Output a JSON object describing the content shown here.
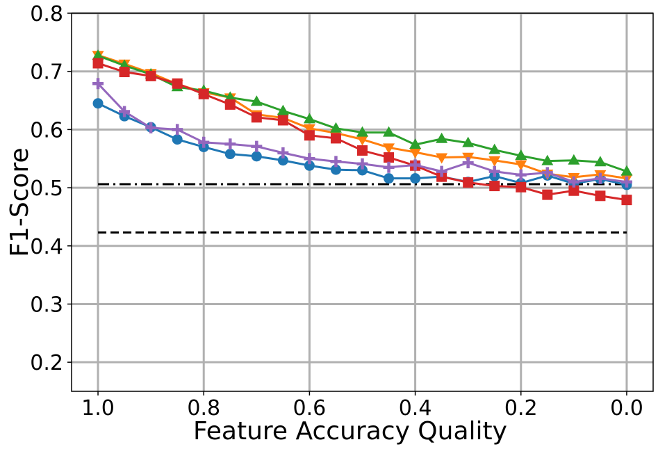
{
  "chart_data": {
    "type": "line",
    "xlabel": "Feature Accuracy Quality",
    "ylabel": "F1-Score",
    "x": [
      1.0,
      0.95,
      0.9,
      0.85,
      0.8,
      0.75,
      0.7,
      0.65,
      0.6,
      0.55,
      0.5,
      0.45,
      0.4,
      0.35,
      0.3,
      0.25,
      0.2,
      0.15,
      0.1,
      0.05,
      0.0
    ],
    "series": [
      {
        "color": "#1f77b4",
        "marker": "circle",
        "values": [
          0.645,
          0.623,
          0.604,
          0.583,
          0.57,
          0.558,
          0.554,
          0.547,
          0.538,
          0.531,
          0.53,
          0.516,
          0.516,
          0.519,
          0.51,
          0.52,
          0.508,
          0.521,
          0.507,
          0.515,
          0.505
        ]
      },
      {
        "color": "#ff7f0e",
        "marker": "triangle-down",
        "values": [
          0.728,
          0.713,
          0.697,
          0.678,
          0.664,
          0.655,
          0.626,
          0.62,
          0.602,
          0.594,
          0.583,
          0.569,
          0.561,
          0.552,
          0.553,
          0.547,
          0.54,
          0.524,
          0.518,
          0.523,
          0.516
        ]
      },
      {
        "color": "#2ca02c",
        "marker": "triangle-up",
        "values": [
          0.727,
          0.71,
          0.695,
          0.673,
          0.667,
          0.655,
          0.648,
          0.632,
          0.618,
          0.602,
          0.595,
          0.595,
          0.574,
          0.584,
          0.577,
          0.565,
          0.555,
          0.546,
          0.547,
          0.544,
          0.528
        ]
      },
      {
        "color": "#d62728",
        "marker": "square",
        "values": [
          0.714,
          0.699,
          0.692,
          0.679,
          0.661,
          0.643,
          0.621,
          0.616,
          0.59,
          0.585,
          0.564,
          0.552,
          0.538,
          0.519,
          0.509,
          0.503,
          0.501,
          0.488,
          0.495,
          0.486,
          0.479
        ]
      },
      {
        "color": "#9467bd",
        "marker": "plus",
        "values": [
          0.679,
          0.631,
          0.603,
          0.6,
          0.578,
          0.575,
          0.571,
          0.56,
          0.55,
          0.545,
          0.541,
          0.535,
          0.539,
          0.528,
          0.543,
          0.528,
          0.522,
          0.526,
          0.51,
          0.516,
          0.51
        ]
      }
    ],
    "hlines": [
      {
        "value": 0.506,
        "dash": "dashdot",
        "color": "#000000"
      },
      {
        "value": 0.423,
        "dash": "dashed",
        "color": "#000000"
      }
    ],
    "xlim": [
      1.05,
      -0.05
    ],
    "ylim": [
      0.15,
      0.8
    ],
    "xticks": [
      {
        "value": 1.0,
        "label": "1.0"
      },
      {
        "value": 0.8,
        "label": "0.8"
      },
      {
        "value": 0.6,
        "label": "0.6"
      },
      {
        "value": 0.4,
        "label": "0.4"
      },
      {
        "value": 0.2,
        "label": "0.2"
      },
      {
        "value": 0.0,
        "label": "0.0"
      }
    ],
    "yticks": [
      0.2,
      0.3,
      0.4,
      0.5,
      0.6,
      0.7,
      0.8
    ],
    "grid": true
  }
}
